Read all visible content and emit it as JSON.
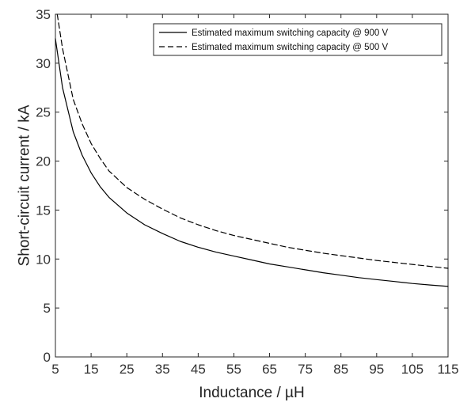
{
  "chart_data": {
    "type": "line",
    "xlabel": "Inductance / µH",
    "ylabel": "Short-circuit current / kA",
    "xlim": [
      5,
      115
    ],
    "ylim": [
      0,
      35
    ],
    "x_ticks": [
      5,
      15,
      25,
      35,
      45,
      55,
      65,
      75,
      85,
      95,
      105,
      115
    ],
    "y_ticks": [
      0,
      5,
      10,
      15,
      20,
      25,
      30,
      35
    ],
    "grid": false,
    "legend_position": "top-right",
    "series": [
      {
        "name": "Estimated maximum switching capacity @ 900 V",
        "line_style": "solid",
        "color": "#000000",
        "x": [
          5,
          7,
          10,
          12.5,
          15,
          17.5,
          20,
          25,
          30,
          35,
          40,
          45,
          50,
          55,
          60,
          65,
          70,
          75,
          80,
          85,
          90,
          95,
          100,
          105,
          110,
          115
        ],
        "y": [
          32.5,
          27.5,
          23.0,
          20.6,
          18.8,
          17.4,
          16.3,
          14.7,
          13.5,
          12.6,
          11.8,
          11.2,
          10.7,
          10.3,
          9.9,
          9.5,
          9.2,
          8.9,
          8.6,
          8.35,
          8.1,
          7.9,
          7.7,
          7.5,
          7.35,
          7.2
        ]
      },
      {
        "name": "Estimated maximum switching capacity @ 500 V",
        "line_style": "dashed",
        "color": "#000000",
        "x": [
          5.5,
          7,
          10,
          12.5,
          15,
          17.5,
          20,
          25,
          30,
          35,
          40,
          45,
          50,
          55,
          60,
          65,
          70,
          75,
          80,
          85,
          90,
          95,
          100,
          105,
          110,
          115
        ],
        "y": [
          35,
          31.5,
          26.3,
          23.8,
          21.8,
          20.3,
          19.0,
          17.3,
          16.1,
          15.1,
          14.2,
          13.5,
          12.9,
          12.4,
          12.0,
          11.6,
          11.2,
          10.9,
          10.6,
          10.35,
          10.1,
          9.85,
          9.65,
          9.45,
          9.25,
          9.05
        ]
      }
    ]
  }
}
